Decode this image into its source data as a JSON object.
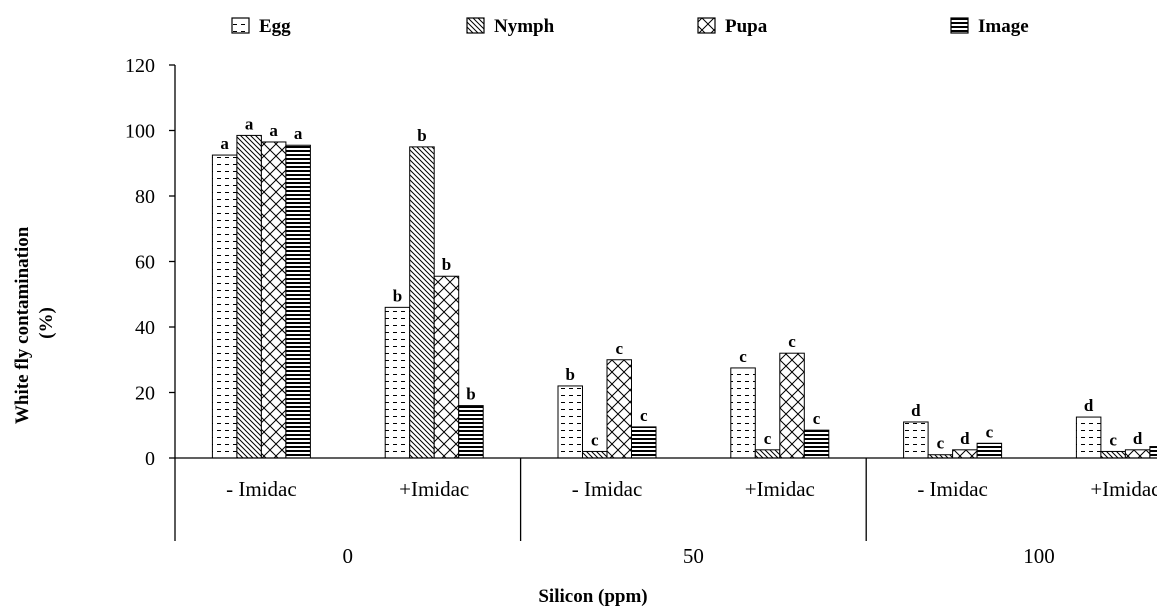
{
  "chart_data": {
    "type": "bar",
    "title": "",
    "ylabel": "White fly contamination (%)",
    "ylabel_lines": [
      "White fly contamination",
      "(%)"
    ],
    "xlabel": "Silicon (ppm)",
    "ylim": [
      0,
      120
    ],
    "yticks": [
      0,
      20,
      40,
      60,
      80,
      100,
      120
    ],
    "grid": false,
    "legend_position": "top",
    "groups": [
      "0",
      "50",
      "100"
    ],
    "categories": [
      "- Imidac",
      "+Imidac",
      "- Imidac",
      "+Imidac",
      "- Imidac",
      "+Imidac"
    ],
    "series": [
      {
        "name": "Egg",
        "pattern": "dashes",
        "values": [
          92.5,
          46,
          22,
          27.5,
          11,
          12.5
        ],
        "labels": [
          "a",
          "b",
          "b",
          "c",
          "d",
          "d"
        ]
      },
      {
        "name": "Nymph",
        "pattern": "diagonal",
        "values": [
          98.5,
          95,
          2,
          2.5,
          1,
          2
        ],
        "labels": [
          "a",
          "b",
          "c",
          "c",
          "c",
          "c"
        ]
      },
      {
        "name": "Pupa",
        "pattern": "crosshatch",
        "values": [
          96.5,
          55.5,
          30,
          32,
          2.5,
          2.5
        ],
        "labels": [
          "a",
          "b",
          "c",
          "c",
          "d",
          "d"
        ]
      },
      {
        "name": "Image",
        "pattern": "hstripes",
        "values": [
          95.5,
          16,
          9.5,
          8.5,
          4.5,
          3.5
        ],
        "labels": [
          "a",
          "b",
          "c",
          "c",
          "c",
          ""
        ]
      }
    ]
  }
}
